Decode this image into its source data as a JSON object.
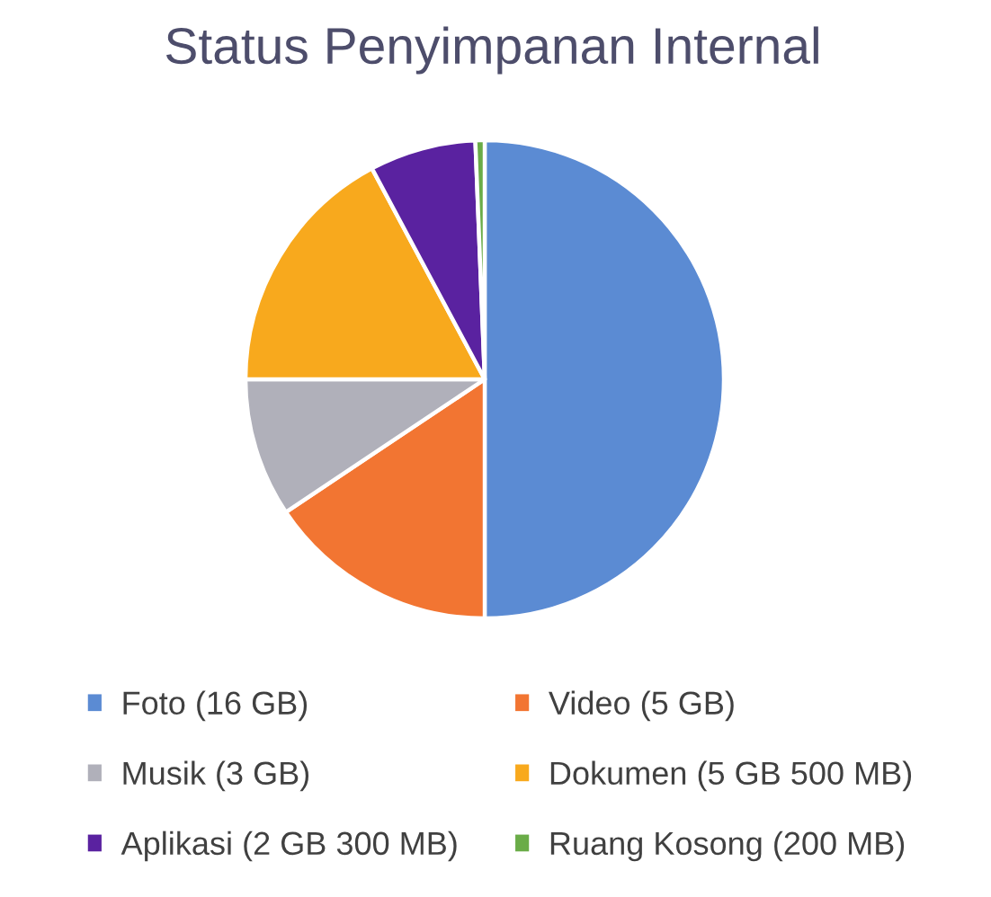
{
  "chart_data": {
    "type": "pie",
    "title": "Status Penyimpanan Internal",
    "categories": [
      "Foto (16 GB)",
      "Video (5 GB)",
      "Musik (3 GB)",
      "Dokumen (5 GB 500 MB)",
      "Aplikasi (2 GB 300 MB)",
      "Ruang Kosong (200 MB)"
    ],
    "values": [
      16,
      5,
      3,
      5.5,
      2.3,
      0.2
    ],
    "colors": [
      "#5b8bd3",
      "#f27532",
      "#b0b0ba",
      "#f8a91d",
      "#5a22a0",
      "#6aac48"
    ],
    "legend": "bottom"
  }
}
